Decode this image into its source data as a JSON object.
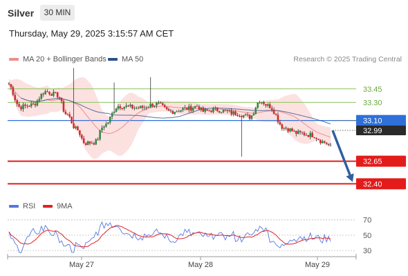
{
  "header": {
    "instrument": "Silver",
    "interval": "30 MIN"
  },
  "timestamp": "Thursday, May 29, 2025 3:15:57 AM CET",
  "legend": {
    "ma_bb": {
      "label": "MA 20 + Bollinger Bands",
      "color": "#f08c8c"
    },
    "ma50": {
      "label": "MA 50",
      "color": "#2c4f8a"
    },
    "copyright": "Research © 2025 Trading Central"
  },
  "rsi_legend": {
    "rsi": {
      "label": "RSI",
      "color": "#5577dd"
    },
    "ma9": {
      "label": "9MA",
      "color": "#e02020"
    }
  },
  "chart_data": [
    {
      "type": "candlestick",
      "title": "Silver 30 MIN",
      "ylim": [
        32.25,
        33.7
      ],
      "x_ticks": [
        "May 27",
        "May 28",
        "May 29"
      ],
      "levels": [
        {
          "value": 33.45,
          "label": "33.45",
          "style": "resistance",
          "color": "#8cc35a"
        },
        {
          "value": 33.3,
          "label": "33.30",
          "style": "resistance",
          "color": "#8cc35a"
        },
        {
          "value": 33.1,
          "label": "33.10",
          "style": "pivot",
          "color": "#2f6fd8"
        },
        {
          "value": 32.65,
          "label": "32.65",
          "style": "support",
          "color": "#e31b1b"
        },
        {
          "value": 32.4,
          "label": "32.40",
          "style": "support",
          "color": "#e31b1b"
        }
      ],
      "last_price": {
        "value": 32.99,
        "label": "32.99"
      },
      "forecast_arrow": {
        "from": 32.99,
        "to": 32.42
      },
      "candle_count": 160
    },
    {
      "type": "line",
      "title": "RSI",
      "ylim": [
        22,
        76
      ],
      "y_ticks": [
        {
          "value": 70,
          "label": "70"
        },
        {
          "value": 50,
          "label": "50"
        },
        {
          "value": 30,
          "label": "30"
        }
      ],
      "series": [
        {
          "name": "RSI"
        },
        {
          "name": "9MA"
        }
      ]
    }
  ]
}
